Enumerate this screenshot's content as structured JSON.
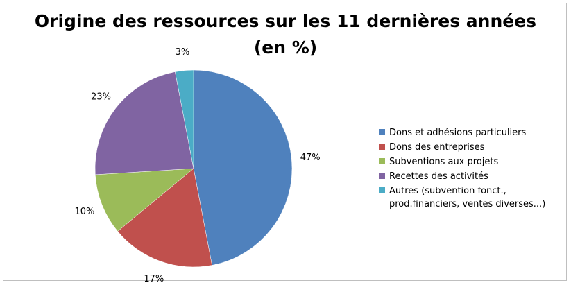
{
  "chart_data": {
    "type": "pie",
    "title": "Origine des ressources sur les 11 dernières années",
    "subtitle": "(en %)",
    "categories": [
      "Dons et adhésions particuliers",
      "Dons des entreprises",
      "Subventions aux projets",
      "Recettes des activités",
      "Autres (subvention fonct., prod.financiers, ventes diverses...)"
    ],
    "values": [
      47,
      17,
      10,
      23,
      3
    ],
    "data_labels": [
      "47%",
      "17%",
      "10%",
      "23%",
      "3%"
    ],
    "colors": [
      "#4f81bd",
      "#c0504d",
      "#9bbb59",
      "#8064a2",
      "#4bacc6"
    ],
    "legend_position": "right"
  },
  "legend": {
    "items": [
      {
        "label": "Dons et adhésions particuliers"
      },
      {
        "label": "Dons des entreprises"
      },
      {
        "label": "Subventions aux projets"
      },
      {
        "label": "Recettes des activités"
      },
      {
        "label": "Autres (subvention fonct.,\nprod.financiers, ventes diverses...)"
      }
    ]
  }
}
